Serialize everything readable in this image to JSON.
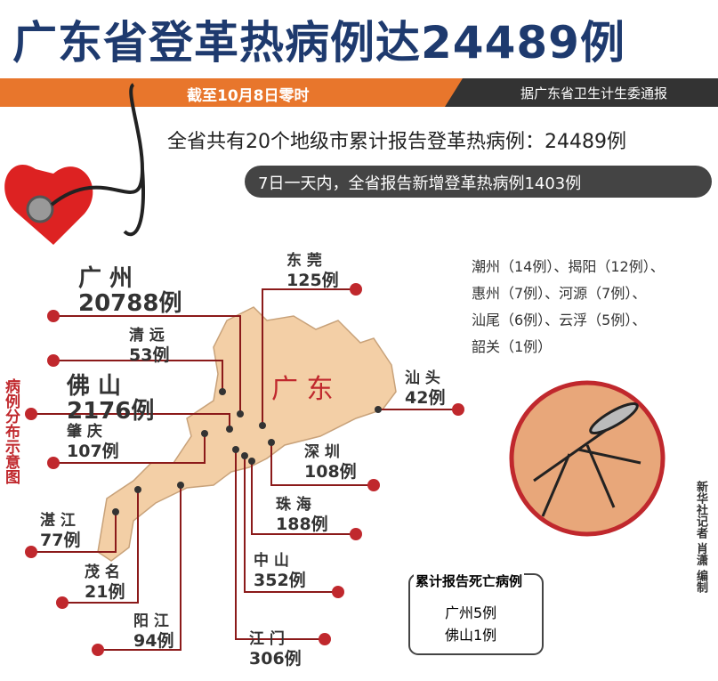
{
  "title": "广东省登革热病例达24489例",
  "banner": {
    "date": "截至10月8日零时",
    "source": "据广东省卫生计生委通报"
  },
  "summary": {
    "total": "全省共有20个地级市累计报告登革热病例：24489例",
    "new": "7日一天内，全省报告新增登革热病例1403例"
  },
  "map_label": "广 东",
  "side_title": "病例分布示意图",
  "cities": [
    {
      "name": "广 州",
      "count": "20788例"
    },
    {
      "name": "清 远",
      "count": "53例"
    },
    {
      "name": "佛 山",
      "count": "2176例"
    },
    {
      "name": "肇 庆",
      "count": "107例"
    },
    {
      "name": "湛 江",
      "count": "77例"
    },
    {
      "name": "茂 名",
      "count": "21例"
    },
    {
      "name": "阳 江",
      "count": "94例"
    },
    {
      "name": "江 门",
      "count": "306例"
    },
    {
      "name": "中 山",
      "count": "352例"
    },
    {
      "name": "珠 海",
      "count": "188例"
    },
    {
      "name": "深 圳",
      "count": "108例"
    },
    {
      "name": "汕 头",
      "count": "42例"
    },
    {
      "name": "东 莞",
      "count": "125例"
    }
  ],
  "other_cities": [
    "潮州（14例）、揭阳（12例）、",
    "惠州（7例）、河源（7例）、",
    "汕尾（6例）、云浮（5例）、",
    "韶关（1例）"
  ],
  "deaths": {
    "title": "累计报告死亡病例",
    "items": [
      "广州5例",
      "佛山1例"
    ]
  },
  "credit": "新华社记者 肖潇 编制"
}
